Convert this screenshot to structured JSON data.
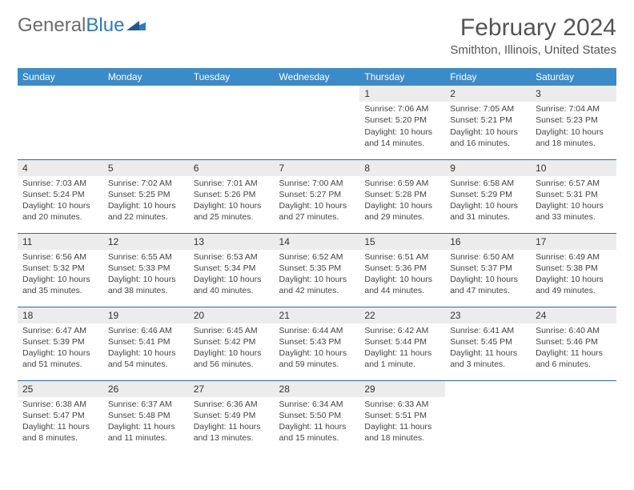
{
  "logo": {
    "text1": "General",
    "text2": "Blue"
  },
  "title": "February 2024",
  "location": "Smithton, Illinois, United States",
  "colors": {
    "header_bg": "#3b8bc9",
    "header_text": "#ffffff",
    "row_divider": "#2d6aa3",
    "daynum_bg": "#ececec",
    "body_text": "#444444",
    "title_text": "#555555",
    "logo_gray": "#6b6b6b",
    "logo_blue": "#2d7bc0"
  },
  "weekdays": [
    "Sunday",
    "Monday",
    "Tuesday",
    "Wednesday",
    "Thursday",
    "Friday",
    "Saturday"
  ],
  "weeks": [
    [
      {
        "empty": true
      },
      {
        "empty": true
      },
      {
        "empty": true
      },
      {
        "empty": true
      },
      {
        "day": "1",
        "sunrise": "Sunrise: 7:06 AM",
        "sunset": "Sunset: 5:20 PM",
        "daylight": "Daylight: 10 hours and 14 minutes."
      },
      {
        "day": "2",
        "sunrise": "Sunrise: 7:05 AM",
        "sunset": "Sunset: 5:21 PM",
        "daylight": "Daylight: 10 hours and 16 minutes."
      },
      {
        "day": "3",
        "sunrise": "Sunrise: 7:04 AM",
        "sunset": "Sunset: 5:23 PM",
        "daylight": "Daylight: 10 hours and 18 minutes."
      }
    ],
    [
      {
        "day": "4",
        "sunrise": "Sunrise: 7:03 AM",
        "sunset": "Sunset: 5:24 PM",
        "daylight": "Daylight: 10 hours and 20 minutes."
      },
      {
        "day": "5",
        "sunrise": "Sunrise: 7:02 AM",
        "sunset": "Sunset: 5:25 PM",
        "daylight": "Daylight: 10 hours and 22 minutes."
      },
      {
        "day": "6",
        "sunrise": "Sunrise: 7:01 AM",
        "sunset": "Sunset: 5:26 PM",
        "daylight": "Daylight: 10 hours and 25 minutes."
      },
      {
        "day": "7",
        "sunrise": "Sunrise: 7:00 AM",
        "sunset": "Sunset: 5:27 PM",
        "daylight": "Daylight: 10 hours and 27 minutes."
      },
      {
        "day": "8",
        "sunrise": "Sunrise: 6:59 AM",
        "sunset": "Sunset: 5:28 PM",
        "daylight": "Daylight: 10 hours and 29 minutes."
      },
      {
        "day": "9",
        "sunrise": "Sunrise: 6:58 AM",
        "sunset": "Sunset: 5:29 PM",
        "daylight": "Daylight: 10 hours and 31 minutes."
      },
      {
        "day": "10",
        "sunrise": "Sunrise: 6:57 AM",
        "sunset": "Sunset: 5:31 PM",
        "daylight": "Daylight: 10 hours and 33 minutes."
      }
    ],
    [
      {
        "day": "11",
        "sunrise": "Sunrise: 6:56 AM",
        "sunset": "Sunset: 5:32 PM",
        "daylight": "Daylight: 10 hours and 35 minutes."
      },
      {
        "day": "12",
        "sunrise": "Sunrise: 6:55 AM",
        "sunset": "Sunset: 5:33 PM",
        "daylight": "Daylight: 10 hours and 38 minutes."
      },
      {
        "day": "13",
        "sunrise": "Sunrise: 6:53 AM",
        "sunset": "Sunset: 5:34 PM",
        "daylight": "Daylight: 10 hours and 40 minutes."
      },
      {
        "day": "14",
        "sunrise": "Sunrise: 6:52 AM",
        "sunset": "Sunset: 5:35 PM",
        "daylight": "Daylight: 10 hours and 42 minutes."
      },
      {
        "day": "15",
        "sunrise": "Sunrise: 6:51 AM",
        "sunset": "Sunset: 5:36 PM",
        "daylight": "Daylight: 10 hours and 44 minutes."
      },
      {
        "day": "16",
        "sunrise": "Sunrise: 6:50 AM",
        "sunset": "Sunset: 5:37 PM",
        "daylight": "Daylight: 10 hours and 47 minutes."
      },
      {
        "day": "17",
        "sunrise": "Sunrise: 6:49 AM",
        "sunset": "Sunset: 5:38 PM",
        "daylight": "Daylight: 10 hours and 49 minutes."
      }
    ],
    [
      {
        "day": "18",
        "sunrise": "Sunrise: 6:47 AM",
        "sunset": "Sunset: 5:39 PM",
        "daylight": "Daylight: 10 hours and 51 minutes."
      },
      {
        "day": "19",
        "sunrise": "Sunrise: 6:46 AM",
        "sunset": "Sunset: 5:41 PM",
        "daylight": "Daylight: 10 hours and 54 minutes."
      },
      {
        "day": "20",
        "sunrise": "Sunrise: 6:45 AM",
        "sunset": "Sunset: 5:42 PM",
        "daylight": "Daylight: 10 hours and 56 minutes."
      },
      {
        "day": "21",
        "sunrise": "Sunrise: 6:44 AM",
        "sunset": "Sunset: 5:43 PM",
        "daylight": "Daylight: 10 hours and 59 minutes."
      },
      {
        "day": "22",
        "sunrise": "Sunrise: 6:42 AM",
        "sunset": "Sunset: 5:44 PM",
        "daylight": "Daylight: 11 hours and 1 minute."
      },
      {
        "day": "23",
        "sunrise": "Sunrise: 6:41 AM",
        "sunset": "Sunset: 5:45 PM",
        "daylight": "Daylight: 11 hours and 3 minutes."
      },
      {
        "day": "24",
        "sunrise": "Sunrise: 6:40 AM",
        "sunset": "Sunset: 5:46 PM",
        "daylight": "Daylight: 11 hours and 6 minutes."
      }
    ],
    [
      {
        "day": "25",
        "sunrise": "Sunrise: 6:38 AM",
        "sunset": "Sunset: 5:47 PM",
        "daylight": "Daylight: 11 hours and 8 minutes."
      },
      {
        "day": "26",
        "sunrise": "Sunrise: 6:37 AM",
        "sunset": "Sunset: 5:48 PM",
        "daylight": "Daylight: 11 hours and 11 minutes."
      },
      {
        "day": "27",
        "sunrise": "Sunrise: 6:36 AM",
        "sunset": "Sunset: 5:49 PM",
        "daylight": "Daylight: 11 hours and 13 minutes."
      },
      {
        "day": "28",
        "sunrise": "Sunrise: 6:34 AM",
        "sunset": "Sunset: 5:50 PM",
        "daylight": "Daylight: 11 hours and 15 minutes."
      },
      {
        "day": "29",
        "sunrise": "Sunrise: 6:33 AM",
        "sunset": "Sunset: 5:51 PM",
        "daylight": "Daylight: 11 hours and 18 minutes."
      },
      {
        "empty": true
      },
      {
        "empty": true
      }
    ]
  ]
}
